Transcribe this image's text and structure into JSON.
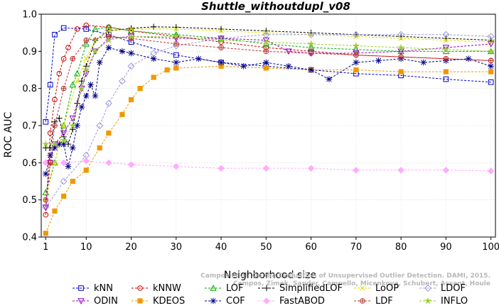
{
  "chart_data": {
    "type": "line",
    "title": "Shuttle_withoutdupl_v08",
    "xlabel": "Neighborhood size",
    "ylabel": "ROC AUC",
    "xlim": [
      0,
      101
    ],
    "ylim": [
      0.4,
      1.0
    ],
    "xticks": [
      1,
      10,
      20,
      30,
      40,
      50,
      60,
      70,
      80,
      90,
      100
    ],
    "yticks": [
      0.4,
      0.5,
      0.6,
      0.7,
      0.8,
      0.9,
      1.0
    ],
    "credit_lines": [
      "Campos et al. On the Evaluation of Unsupervised Outlier Detection. DAMI, 2015.",
      "Campos, Zimek, Sander, Campello, Micenkova, Schubert, Assent, Houle"
    ],
    "series": [
      {
        "name": "kNN",
        "color": "#0000cc",
        "marker": "square",
        "points": [
          [
            1,
            0.71
          ],
          [
            2,
            0.81
          ],
          [
            3,
            0.945
          ],
          [
            5,
            0.963
          ],
          [
            10,
            0.96
          ],
          [
            15,
            0.945
          ],
          [
            20,
            0.925
          ],
          [
            30,
            0.89
          ],
          [
            40,
            0.87
          ],
          [
            50,
            0.86
          ],
          [
            60,
            0.85
          ],
          [
            70,
            0.84
          ],
          [
            80,
            0.835
          ],
          [
            90,
            0.825
          ],
          [
            100,
            0.817
          ]
        ]
      },
      {
        "name": "kNNW",
        "color": "#cc0000",
        "marker": "circle",
        "points": [
          [
            1,
            0.46
          ],
          [
            2,
            0.68
          ],
          [
            3,
            0.77
          ],
          [
            4,
            0.84
          ],
          [
            5,
            0.88
          ],
          [
            6,
            0.91
          ],
          [
            8,
            0.96
          ],
          [
            10,
            0.97
          ],
          [
            15,
            0.965
          ],
          [
            20,
            0.955
          ],
          [
            30,
            0.94
          ],
          [
            40,
            0.925
          ],
          [
            50,
            0.91
          ],
          [
            60,
            0.9
          ],
          [
            70,
            0.89
          ],
          [
            80,
            0.885
          ],
          [
            90,
            0.88
          ],
          [
            100,
            0.875
          ]
        ]
      },
      {
        "name": "LOF",
        "color": "#00aa00",
        "marker": "triangle-up",
        "points": [
          [
            1,
            0.52
          ],
          [
            3,
            0.6
          ],
          [
            5,
            0.7
          ],
          [
            7,
            0.81
          ],
          [
            8,
            0.84
          ],
          [
            10,
            0.92
          ],
          [
            12,
            0.96
          ],
          [
            15,
            0.965
          ],
          [
            20,
            0.955
          ],
          [
            30,
            0.945
          ],
          [
            40,
            0.935
          ],
          [
            50,
            0.92
          ],
          [
            60,
            0.91
          ],
          [
            70,
            0.905
          ],
          [
            80,
            0.9
          ],
          [
            90,
            0.9
          ],
          [
            100,
            0.9
          ]
        ]
      },
      {
        "name": "SimplifiedLOF",
        "color": "#000000",
        "marker": "plus",
        "points": [
          [
            1,
            0.64
          ],
          [
            2,
            0.64
          ],
          [
            3,
            0.71
          ],
          [
            4,
            0.72
          ],
          [
            5,
            0.67
          ],
          [
            6,
            0.65
          ],
          [
            7,
            0.69
          ],
          [
            8,
            0.76
          ],
          [
            9,
            0.82
          ],
          [
            10,
            0.86
          ],
          [
            12,
            0.93
          ],
          [
            15,
            0.955
          ],
          [
            20,
            0.962
          ],
          [
            25,
            0.966
          ],
          [
            30,
            0.965
          ],
          [
            40,
            0.96
          ],
          [
            50,
            0.955
          ],
          [
            60,
            0.95
          ],
          [
            70,
            0.945
          ],
          [
            80,
            0.94
          ],
          [
            90,
            0.935
          ],
          [
            100,
            0.93
          ]
        ]
      },
      {
        "name": "LoOP",
        "color": "#dddd00",
        "marker": "cross",
        "points": [
          [
            1,
            0.5
          ],
          [
            3,
            0.6
          ],
          [
            5,
            0.7
          ],
          [
            8,
            0.82
          ],
          [
            10,
            0.88
          ],
          [
            12,
            0.93
          ],
          [
            15,
            0.955
          ],
          [
            20,
            0.96
          ],
          [
            30,
            0.96
          ],
          [
            40,
            0.955
          ],
          [
            50,
            0.95
          ],
          [
            60,
            0.945
          ],
          [
            70,
            0.94
          ],
          [
            80,
            0.935
          ],
          [
            90,
            0.93
          ],
          [
            100,
            0.925
          ]
        ]
      },
      {
        "name": "LDOF",
        "color": "#9999dd",
        "marker": "diamond",
        "points": [
          [
            1,
            0.48
          ],
          [
            5,
            0.55
          ],
          [
            10,
            0.62
          ],
          [
            13,
            0.7
          ],
          [
            15,
            0.76
          ],
          [
            18,
            0.82
          ],
          [
            20,
            0.86
          ],
          [
            25,
            0.895
          ],
          [
            30,
            0.915
          ],
          [
            40,
            0.935
          ],
          [
            50,
            0.945
          ],
          [
            60,
            0.945
          ],
          [
            70,
            0.945
          ],
          [
            80,
            0.945
          ],
          [
            90,
            0.945
          ],
          [
            100,
            0.94
          ]
        ]
      },
      {
        "name": "ODIN",
        "color": "#9900cc",
        "marker": "triangle-down",
        "points": [
          [
            1,
            0.48
          ],
          [
            2,
            0.6
          ],
          [
            3,
            0.65
          ],
          [
            5,
            0.68
          ],
          [
            7,
            0.72
          ],
          [
            9,
            0.8
          ],
          [
            10,
            0.84
          ],
          [
            12,
            0.9
          ],
          [
            15,
            0.935
          ],
          [
            20,
            0.94
          ],
          [
            30,
            0.935
          ],
          [
            40,
            0.935
          ],
          [
            50,
            0.93
          ],
          [
            55,
            0.9
          ],
          [
            60,
            0.895
          ],
          [
            70,
            0.895
          ],
          [
            80,
            0.9
          ],
          [
            90,
            0.91
          ],
          [
            100,
            0.92
          ]
        ]
      },
      {
        "name": "KDEOS",
        "color": "#ee9900",
        "marker": "square-filled",
        "points": [
          [
            1,
            0.41
          ],
          [
            3,
            0.47
          ],
          [
            5,
            0.51
          ],
          [
            7,
            0.55
          ],
          [
            10,
            0.58
          ],
          [
            13,
            0.64
          ],
          [
            15,
            0.68
          ],
          [
            18,
            0.73
          ],
          [
            20,
            0.77
          ],
          [
            22,
            0.8
          ],
          [
            25,
            0.83
          ],
          [
            28,
            0.85
          ],
          [
            30,
            0.855
          ],
          [
            40,
            0.86
          ],
          [
            50,
            0.855
          ],
          [
            60,
            0.85
          ],
          [
            70,
            0.85
          ],
          [
            80,
            0.845
          ],
          [
            90,
            0.845
          ],
          [
            100,
            0.845
          ]
        ]
      },
      {
        "name": "COF",
        "color": "#000088",
        "marker": "asterisk",
        "points": [
          [
            1,
            0.57
          ],
          [
            2,
            0.62
          ],
          [
            3,
            0.64
          ],
          [
            4,
            0.65
          ],
          [
            5,
            0.65
          ],
          [
            6,
            0.59
          ],
          [
            7,
            0.64
          ],
          [
            8,
            0.7
          ],
          [
            9,
            0.75
          ],
          [
            10,
            0.78
          ],
          [
            11,
            0.81
          ],
          [
            12,
            0.78
          ],
          [
            13,
            0.87
          ],
          [
            15,
            0.91
          ],
          [
            18,
            0.9
          ],
          [
            20,
            0.895
          ],
          [
            25,
            0.88
          ],
          [
            30,
            0.87
          ],
          [
            35,
            0.88
          ],
          [
            40,
            0.87
          ],
          [
            45,
            0.86
          ],
          [
            50,
            0.87
          ],
          [
            55,
            0.86
          ],
          [
            60,
            0.85
          ],
          [
            64,
            0.825
          ],
          [
            70,
            0.87
          ],
          [
            75,
            0.875
          ],
          [
            80,
            0.88
          ],
          [
            85,
            0.87
          ],
          [
            90,
            0.875
          ],
          [
            95,
            0.88
          ],
          [
            100,
            0.86
          ]
        ]
      },
      {
        "name": "FastABOD",
        "color": "#ffaaff",
        "marker": "diamond-filled",
        "points": [
          [
            1,
            0.6
          ],
          [
            5,
            0.6
          ],
          [
            10,
            0.605
          ],
          [
            15,
            0.6
          ],
          [
            20,
            0.595
          ],
          [
            30,
            0.59
          ],
          [
            40,
            0.585
          ],
          [
            50,
            0.585
          ],
          [
            60,
            0.585
          ],
          [
            70,
            0.58
          ],
          [
            80,
            0.58
          ],
          [
            90,
            0.58
          ],
          [
            100,
            0.578
          ]
        ]
      },
      {
        "name": "LDF",
        "color": "#bb3333",
        "marker": "circle-plus",
        "points": [
          [
            1,
            0.5
          ],
          [
            2,
            0.6
          ],
          [
            3,
            0.7
          ],
          [
            5,
            0.8
          ],
          [
            7,
            0.88
          ],
          [
            10,
            0.93
          ],
          [
            15,
            0.94
          ],
          [
            20,
            0.935
          ],
          [
            30,
            0.92
          ],
          [
            40,
            0.91
          ],
          [
            50,
            0.9
          ],
          [
            60,
            0.895
          ],
          [
            70,
            0.89
          ],
          [
            80,
            0.885
          ],
          [
            90,
            0.88
          ],
          [
            100,
            0.875
          ]
        ]
      },
      {
        "name": "INFLO",
        "color": "#99cc33",
        "marker": "star-filled",
        "points": [
          [
            1,
            0.65
          ],
          [
            3,
            0.65
          ],
          [
            5,
            0.66
          ],
          [
            7,
            0.7
          ],
          [
            9,
            0.8
          ],
          [
            10,
            0.85
          ],
          [
            12,
            0.9
          ],
          [
            15,
            0.93
          ],
          [
            20,
            0.94
          ],
          [
            30,
            0.94
          ],
          [
            40,
            0.93
          ],
          [
            50,
            0.925
          ],
          [
            60,
            0.92
          ],
          [
            70,
            0.915
          ],
          [
            80,
            0.91
          ],
          [
            90,
            0.905
          ],
          [
            100,
            0.9
          ]
        ]
      }
    ]
  }
}
